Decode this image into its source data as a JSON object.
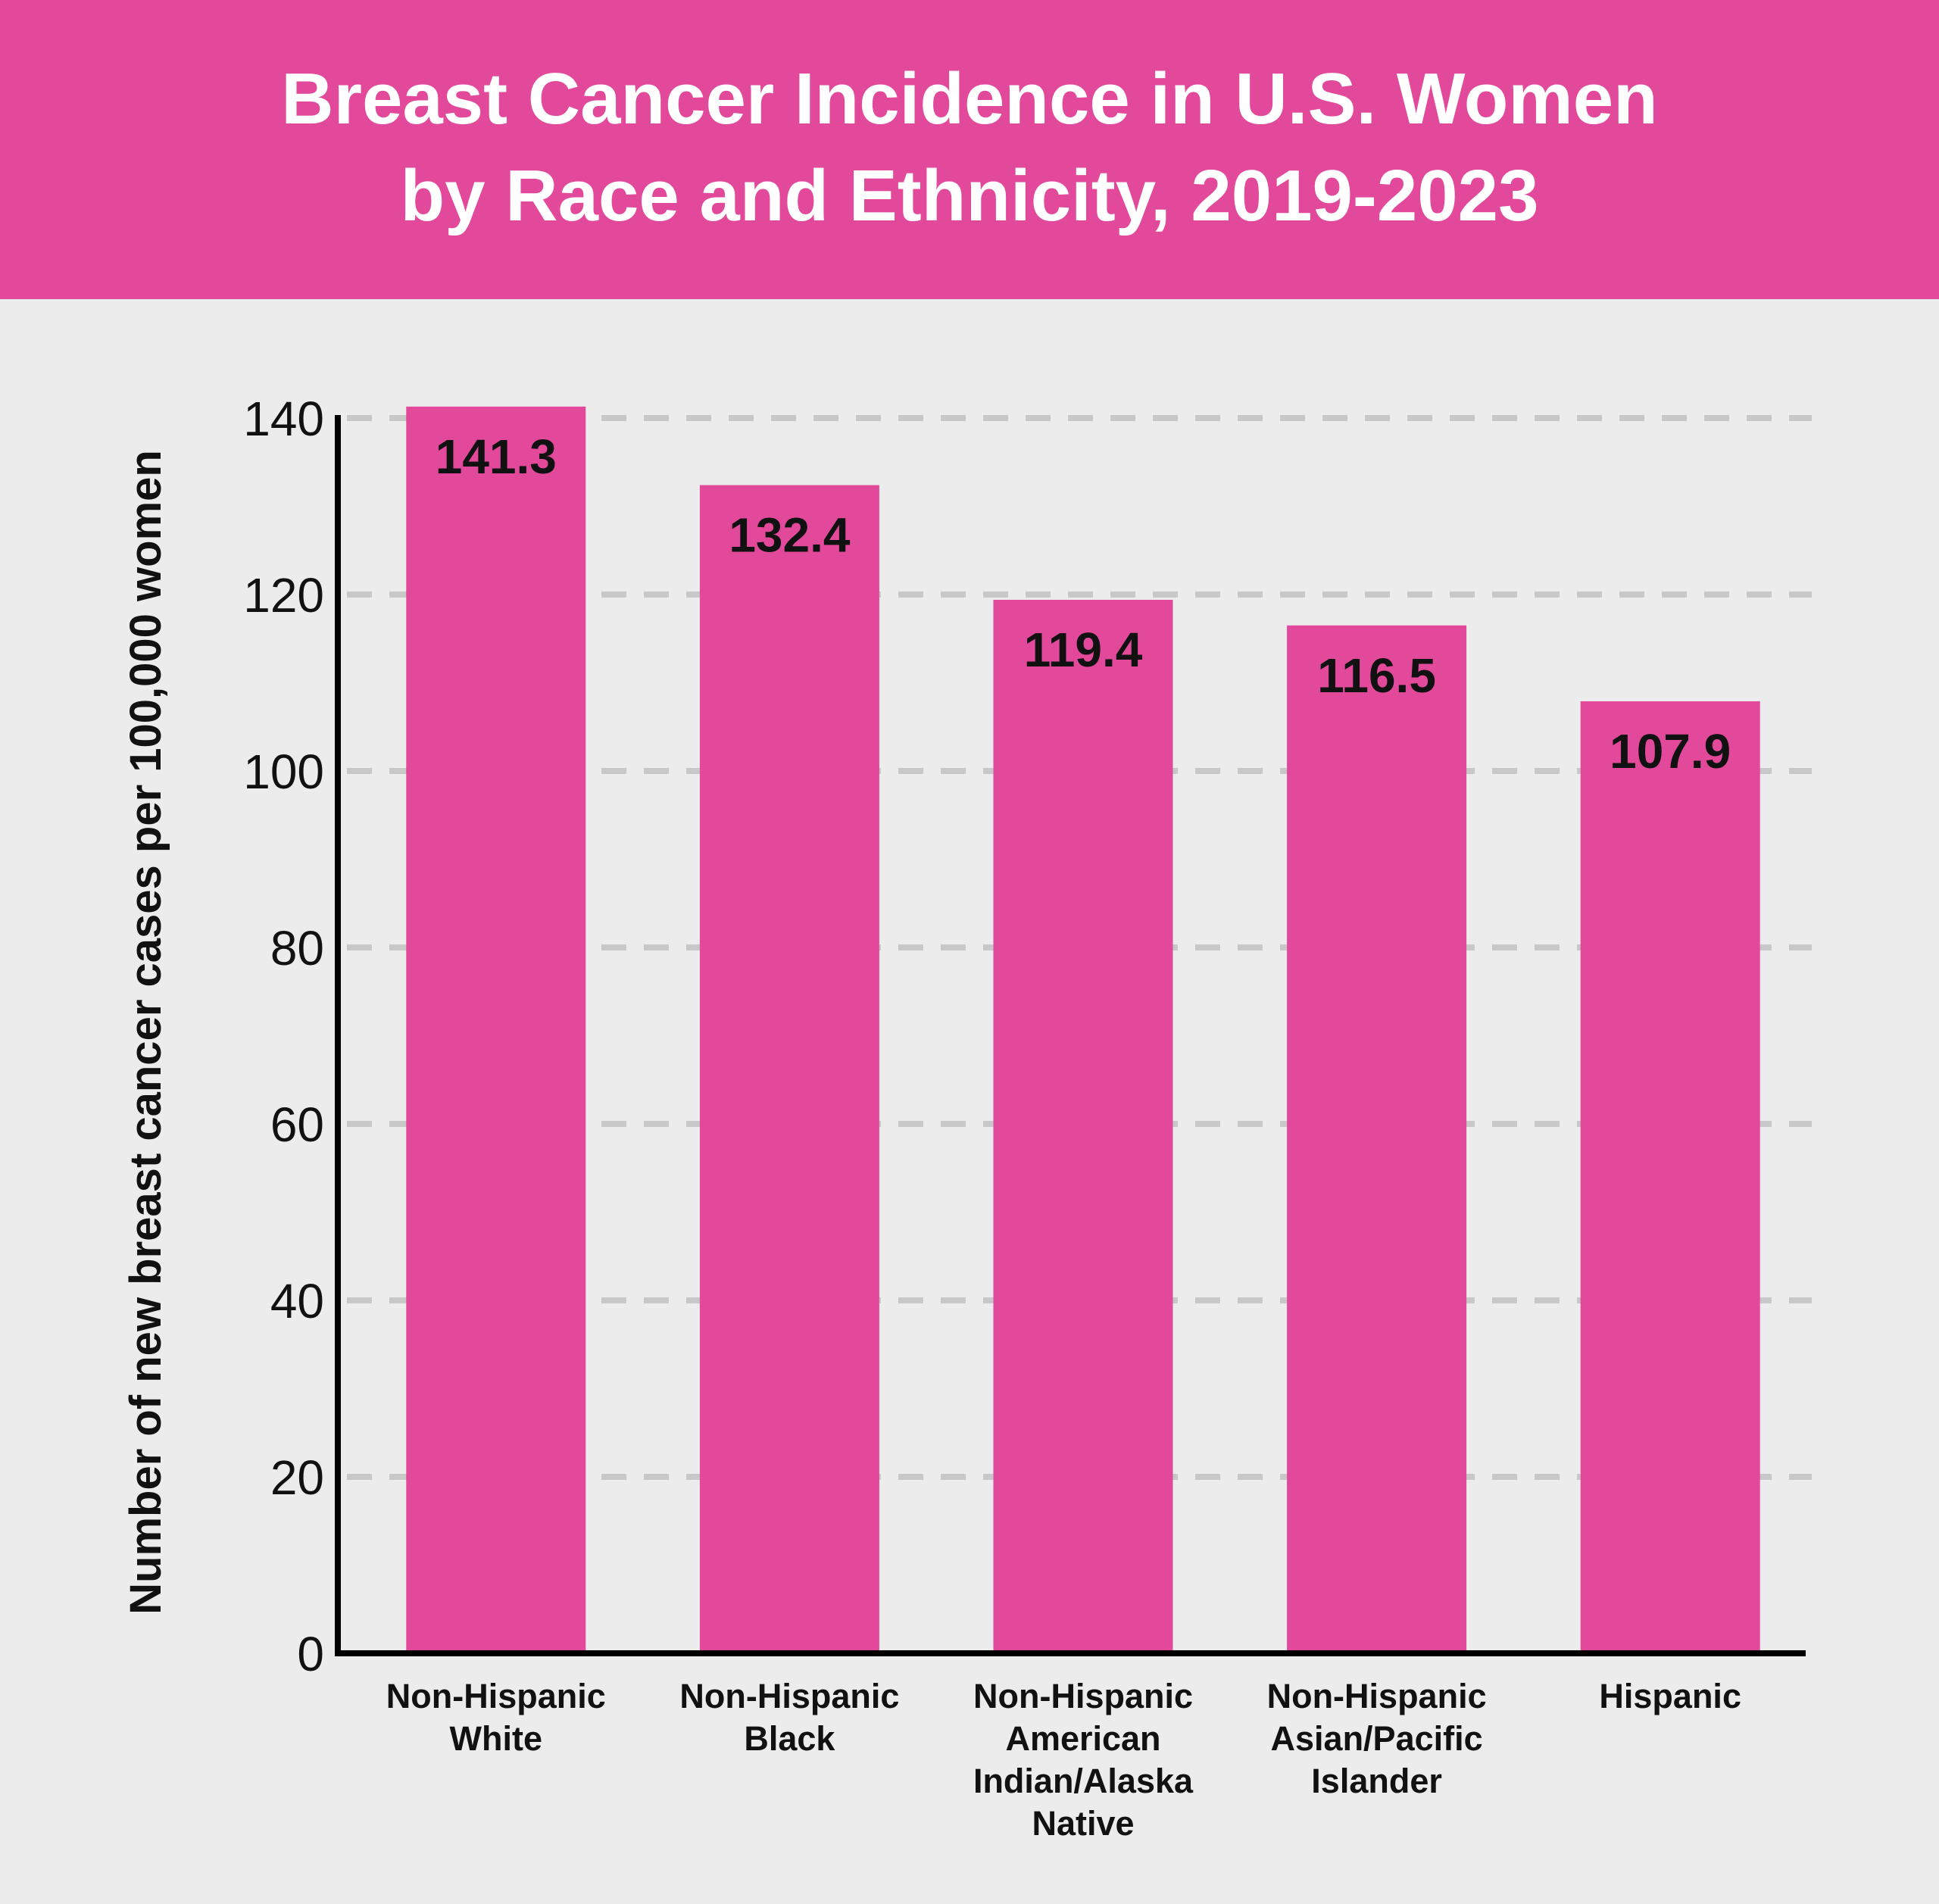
{
  "chart_data": {
    "type": "bar",
    "title": [
      "Breast Cancer Incidence in U.S. Women",
      "by Race and Ethnicity, 2019-2023"
    ],
    "y_label": "Number of new breast cancer cases per 100,000 women",
    "categories": [
      "Non-Hispanic White",
      "Non-Hispanic Black",
      "Non-Hispanic American Indian/Alaska Native",
      "Non-Hispanic Asian/Pacific Islander",
      "Hispanic"
    ],
    "values": [
      141.3,
      132.4,
      119.4,
      116.5,
      107.9
    ],
    "color": "#e2499b",
    "ylim": [
      0,
      140
    ],
    "yticks": [
      0,
      20,
      40,
      60,
      80,
      100,
      120,
      140
    ],
    "grid": true
  }
}
